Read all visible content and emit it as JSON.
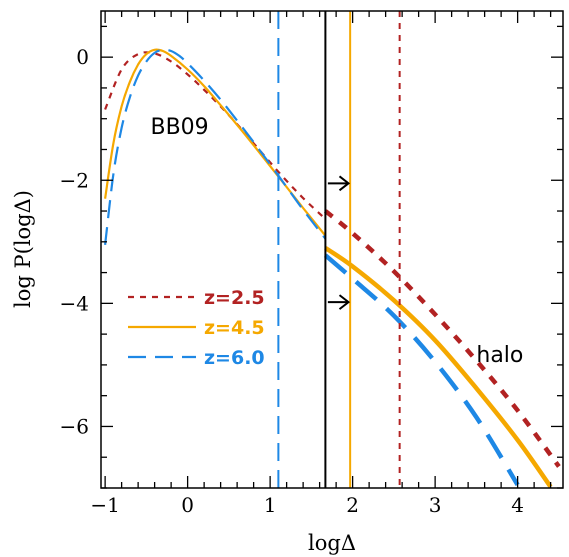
{
  "chart_data": {
    "type": "line",
    "xlabel": "logΔ",
    "ylabel": "log  P(logΔ)",
    "xlim": [
      -1.05,
      4.55
    ],
    "ylim": [
      -7.0,
      0.75
    ],
    "xticks": [
      -1,
      0,
      1,
      2,
      3,
      4
    ],
    "xtick_labels": [
      "−1",
      "0",
      "1",
      "2",
      "3",
      "4"
    ],
    "yticks": [
      0,
      -2,
      -4,
      -6
    ],
    "ytick_labels": [
      "0",
      "−2",
      "−4",
      "−6"
    ],
    "grid": false,
    "legend_position": "center-left",
    "series": [
      {
        "name": "z=2.5",
        "color": "#b22222",
        "dash": "short-dash",
        "thin_x": [
          -1.0,
          -0.8,
          -0.6,
          -0.4,
          -0.2,
          0.0,
          0.2,
          0.4,
          0.6,
          0.8,
          1.0,
          1.2,
          1.4,
          1.67
        ],
        "thin_y": [
          -0.85,
          -0.2,
          0.05,
          0.06,
          -0.07,
          -0.28,
          -0.53,
          -0.8,
          -1.09,
          -1.4,
          -1.71,
          -2.01,
          -2.29,
          -2.63
        ],
        "thick_x": [
          1.67,
          2.0,
          2.5,
          3.0,
          3.5,
          4.0,
          4.5
        ],
        "thick_y": [
          -2.5,
          -2.86,
          -3.48,
          -4.18,
          -4.93,
          -5.74,
          -6.65
        ]
      },
      {
        "name": "z=4.5",
        "color": "#f5a800",
        "dash": "solid",
        "thin_x": [
          -1.0,
          -0.9,
          -0.8,
          -0.7,
          -0.6,
          -0.5,
          -0.4,
          -0.3,
          -0.2,
          0.0,
          0.2,
          0.4,
          0.6,
          0.8,
          1.0,
          1.2,
          1.4,
          1.67
        ],
        "thin_y": [
          -2.3,
          -1.4,
          -0.8,
          -0.4,
          -0.12,
          0.05,
          0.12,
          0.1,
          0.02,
          -0.2,
          -0.47,
          -0.78,
          -1.1,
          -1.43,
          -1.77,
          -2.11,
          -2.45,
          -2.9
        ],
        "thick_x": [
          1.67,
          2.0,
          2.5,
          3.0,
          3.5,
          4.0,
          4.4
        ],
        "thick_y": [
          -3.1,
          -3.4,
          -3.95,
          -4.6,
          -5.38,
          -6.22,
          -6.98
        ]
      },
      {
        "name": "z=6.0",
        "color": "#1e88e5",
        "dash": "long-dash",
        "thin_x": [
          -1.0,
          -0.9,
          -0.8,
          -0.7,
          -0.6,
          -0.5,
          -0.4,
          -0.3,
          -0.2,
          -0.1,
          0.0,
          0.2,
          0.4,
          0.6,
          0.8,
          1.0,
          1.2,
          1.4,
          1.67
        ],
        "thin_y": [
          -3.05,
          -1.9,
          -1.15,
          -0.65,
          -0.3,
          -0.07,
          0.07,
          0.12,
          0.1,
          0.02,
          -0.1,
          -0.38,
          -0.69,
          -1.03,
          -1.38,
          -1.74,
          -2.11,
          -2.48,
          -2.95
        ],
        "thick_x": [
          1.67,
          2.0,
          2.5,
          3.0,
          3.5,
          4.0
        ],
        "thick_y": [
          -3.22,
          -3.6,
          -4.2,
          -4.95,
          -5.85,
          -6.95
        ]
      }
    ],
    "vertical_lines": [
      {
        "x": 1.1,
        "color": "#1e88e5",
        "dash": "long-dash"
      },
      {
        "x": 1.67,
        "color": "#000000",
        "dash": "solid"
      },
      {
        "x": 1.97,
        "color": "#f5a800",
        "dash": "solid"
      },
      {
        "x": 2.57,
        "color": "#b22222",
        "dash": "short-dash"
      }
    ],
    "arrows": [
      {
        "x0": 1.7,
        "x1": 1.95,
        "y": -2.05
      },
      {
        "x0": 1.7,
        "x1": 1.95,
        "y": -3.98
      }
    ],
    "annotations": [
      {
        "text": "BB09",
        "x": -0.45,
        "y": -1.25
      },
      {
        "text": "halo",
        "x": 3.5,
        "y": -4.95
      }
    ]
  }
}
